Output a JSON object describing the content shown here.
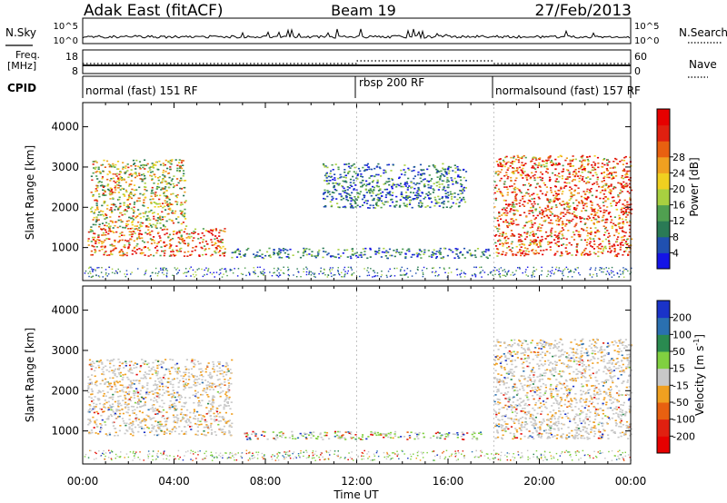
{
  "header": {
    "radar": "Adak East (fitACF)",
    "beam": "Beam 19",
    "date": "27/Feb/2013"
  },
  "labels": {
    "nsky": "N.Sky",
    "nsearch": "N.Search",
    "freq_line1": "Freq.",
    "freq_line2": "[MHz]",
    "nave": "Nave",
    "cpid": "CPID",
    "noise_ticks": [
      "10^5",
      "10^0"
    ],
    "freq_ticks_left": [
      "18",
      "8"
    ],
    "freq_ticks_right": [
      "60",
      "0"
    ]
  },
  "cpid_segments": [
    {
      "label": "normal (fast) 151 RF",
      "start": 0,
      "end": 12
    },
    {
      "label": "rbsp 200 RF",
      "start": 12,
      "end": 18
    },
    {
      "label": "normalsound (fast) 157 RF",
      "start": 18,
      "end": 24
    }
  ],
  "chart_data": [
    {
      "type": "heatmap",
      "name": "power",
      "ylabel": "Slant Range [km]",
      "xlabel": "Time UT",
      "xlim": [
        0,
        24
      ],
      "ylim": [
        180,
        4600
      ],
      "yticks": [
        "1000",
        "2000",
        "3000",
        "4000"
      ],
      "xticks": [
        "00:00",
        "04:00",
        "08:00",
        "12:00",
        "16:00",
        "20:00",
        "00:00"
      ],
      "colorbar": {
        "label": "Power [dB]",
        "ticks": [
          "4",
          "8",
          "12",
          "16",
          "20",
          "24",
          "28"
        ],
        "colors": [
          "#1414e6",
          "#2050b0",
          "#2a7a55",
          "#50a050",
          "#a8d040",
          "#f0d020",
          "#f0a020",
          "#e86010",
          "#e02010",
          "#e60000"
        ]
      },
      "regions": [
        {
          "desc": "morning E-band ionospheric echoes",
          "t": [
            0.2,
            6.2
          ],
          "range": [
            800,
            1500
          ],
          "level": "high"
        },
        {
          "desc": "morning F-region echoes",
          "t": [
            0.3,
            4.5
          ],
          "range": [
            1500,
            3200
          ],
          "level": "medium-high"
        },
        {
          "desc": "daytime echoes",
          "t": [
            6.5,
            17.8
          ],
          "range": [
            750,
            1000
          ],
          "level": "low"
        },
        {
          "desc": "scattered echoes",
          "t": [
            10.5,
            16.8
          ],
          "range": [
            2000,
            3100
          ],
          "level": "low"
        },
        {
          "desc": "evening echoes",
          "t": [
            18.0,
            24.0
          ],
          "range": [
            800,
            3300
          ],
          "level": "high"
        }
      ]
    },
    {
      "type": "heatmap",
      "name": "velocity",
      "ylabel": "Slant Range [km]",
      "xlabel": "Time UT",
      "xlim": [
        0,
        24
      ],
      "ylim": [
        180,
        4600
      ],
      "yticks": [
        "1000",
        "2000",
        "3000",
        "4000"
      ],
      "xticks": [
        "00:00",
        "04:00",
        "08:00",
        "12:00",
        "16:00",
        "20:00",
        "00:00"
      ],
      "colorbar": {
        "label": "Velocity [m s^-1]",
        "ticks": [
          "200",
          "100",
          "50",
          "15",
          "-15",
          "-50",
          "-100",
          "-200"
        ],
        "colors": [
          "#1a33c8",
          "#2a70b0",
          "#2a8a50",
          "#80d040",
          "#c8c8c8",
          "#f0a020",
          "#e86010",
          "#e02010",
          "#e60000"
        ]
      },
      "regions": [
        {
          "desc": "ground scatter (grey)",
          "t": [
            0.2,
            6.5
          ],
          "range": [
            900,
            2800
          ],
          "level": "ground"
        },
        {
          "desc": "daytime mixed echoes",
          "t": [
            7.0,
            17.5
          ],
          "range": [
            800,
            1000
          ],
          "level": "mixed"
        },
        {
          "desc": "evening ground scatter",
          "t": [
            18.0,
            24.0
          ],
          "range": [
            800,
            3300
          ],
          "level": "ground"
        }
      ]
    }
  ]
}
